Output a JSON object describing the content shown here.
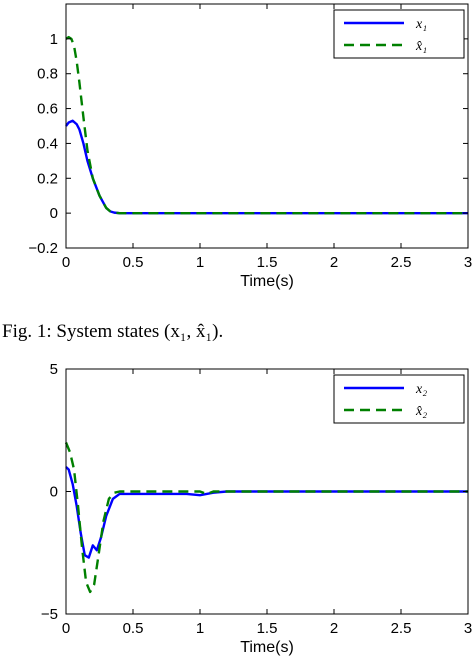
{
  "caption": "Fig. 1: System states (x₁, x̂₁).",
  "chart_data": [
    {
      "type": "line",
      "xlabel": "Time(s)",
      "ylabel": "",
      "xlim": [
        0,
        3
      ],
      "ylim": [
        -0.2,
        1.2
      ],
      "xticks": [
        0,
        0.5,
        1,
        1.5,
        2,
        2.5,
        3
      ],
      "xtick_labels": [
        "0",
        "0.5",
        "1",
        "1.5",
        "2",
        "2.5",
        "3"
      ],
      "yticks": [
        -0.2,
        0,
        0.2,
        0.4,
        0.6,
        0.8,
        1
      ],
      "ytick_labels": [
        "−0.2",
        "0",
        "0.2",
        "0.4",
        "0.6",
        "0.8",
        "1"
      ],
      "legend_position": "top-right",
      "grid": false,
      "series": [
        {
          "name": "x₁",
          "color": "#0000ff",
          "dash": "solid",
          "x": [
            0,
            0.02,
            0.05,
            0.08,
            0.1,
            0.13,
            0.16,
            0.2,
            0.25,
            0.3,
            0.33,
            0.36,
            0.4,
            0.5,
            1,
            2,
            3
          ],
          "y": [
            0.5,
            0.52,
            0.53,
            0.51,
            0.48,
            0.4,
            0.3,
            0.2,
            0.1,
            0.03,
            0.01,
            0.003,
            0,
            0,
            0,
            0,
            0
          ]
        },
        {
          "name": "x̂₁",
          "color": "#008000",
          "dash": "dashed",
          "x": [
            0,
            0.02,
            0.04,
            0.06,
            0.08,
            0.1,
            0.13,
            0.16,
            0.2,
            0.25,
            0.3,
            0.33,
            0.36,
            0.4,
            0.5,
            1,
            2,
            3
          ],
          "y": [
            1.0,
            1.01,
            1.0,
            0.96,
            0.87,
            0.75,
            0.55,
            0.36,
            0.2,
            0.1,
            0.03,
            0.01,
            0.003,
            0,
            0,
            0,
            0,
            0
          ]
        }
      ]
    },
    {
      "type": "line",
      "xlabel": "Time(s)",
      "ylabel": "",
      "xlim": [
        0,
        3
      ],
      "ylim": [
        -5,
        5
      ],
      "xticks": [
        0,
        0.5,
        1,
        1.5,
        2,
        2.5,
        3
      ],
      "xtick_labels": [
        "0",
        "0.5",
        "1",
        "1.5",
        "2",
        "2.5",
        "3"
      ],
      "yticks": [
        -5,
        0,
        5
      ],
      "ytick_labels": [
        "−5",
        "0",
        "5"
      ],
      "legend_position": "top-right",
      "grid": false,
      "series": [
        {
          "name": "x₂",
          "color": "#0000ff",
          "dash": "solid",
          "x": [
            0,
            0.02,
            0.05,
            0.08,
            0.11,
            0.14,
            0.17,
            0.2,
            0.23,
            0.26,
            0.3,
            0.35,
            0.4,
            0.5,
            0.7,
            0.9,
            1.0,
            1.05,
            1.1,
            1.2,
            1.5,
            2,
            3
          ],
          "y": [
            1.0,
            0.9,
            0.3,
            -0.6,
            -1.7,
            -2.6,
            -2.7,
            -2.2,
            -2.4,
            -1.9,
            -1.0,
            -0.3,
            -0.1,
            -0.1,
            -0.1,
            -0.1,
            -0.15,
            -0.1,
            -0.05,
            0,
            0,
            0,
            0
          ]
        },
        {
          "name": "x̂₂",
          "color": "#008000",
          "dash": "dashed",
          "x": [
            0,
            0.03,
            0.06,
            0.09,
            0.12,
            0.15,
            0.18,
            0.21,
            0.24,
            0.28,
            0.32,
            0.36,
            0.4,
            0.5,
            1.0,
            1.05,
            1.1,
            1.2,
            1.5,
            2,
            3
          ],
          "y": [
            2.0,
            1.6,
            0.9,
            -0.6,
            -2.3,
            -3.7,
            -4.1,
            -3.8,
            -2.7,
            -1.2,
            -0.3,
            -0.05,
            0,
            0,
            0,
            -0.1,
            0,
            0,
            0,
            0,
            0
          ]
        }
      ]
    }
  ]
}
